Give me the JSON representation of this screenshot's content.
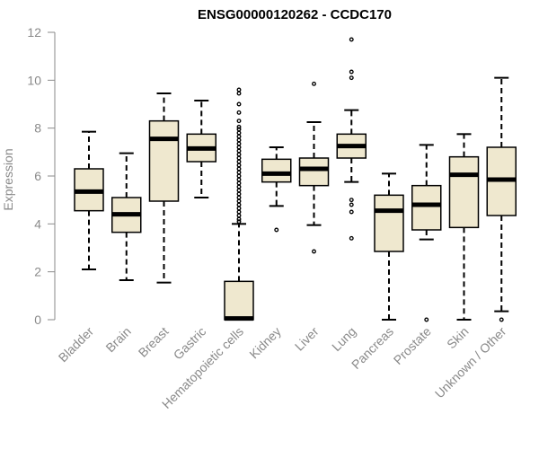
{
  "chart_data": {
    "type": "boxplot",
    "title": "ENSG00000120262 - CCDC170",
    "xlabel": "",
    "ylabel": "Expression",
    "ylim": [
      0,
      12
    ],
    "yticks": [
      0,
      2,
      4,
      6,
      8,
      10,
      12
    ],
    "grid": false,
    "box_fill": "#efe8cf",
    "median_color": "#000000",
    "categories": [
      "Bladder",
      "Brain",
      "Breast",
      "Gastric",
      "Hematopoietic cells",
      "Kidney",
      "Liver",
      "Lung",
      "Pancreas",
      "Prostate",
      "Skin",
      "Unknown / Other"
    ],
    "boxes": [
      {
        "whisker_low": 2.1,
        "q1": 4.55,
        "median": 5.35,
        "q3": 6.3,
        "whisker_high": 7.85,
        "outliers": []
      },
      {
        "whisker_low": 1.65,
        "q1": 3.65,
        "median": 4.4,
        "q3": 5.1,
        "whisker_high": 6.95,
        "outliers": []
      },
      {
        "whisker_low": 1.55,
        "q1": 4.95,
        "median": 7.55,
        "q3": 8.3,
        "whisker_high": 9.45,
        "outliers": []
      },
      {
        "whisker_low": 5.1,
        "q1": 6.6,
        "median": 7.15,
        "q3": 7.75,
        "whisker_high": 9.15,
        "outliers": []
      },
      {
        "whisker_low": 0.0,
        "q1": 0.0,
        "median": 0.05,
        "q3": 1.6,
        "whisker_high": 4.0,
        "outliers": [
          9.6,
          9.45,
          9.0,
          8.65,
          8.3,
          8.05,
          7.95,
          7.8,
          7.65,
          7.5,
          7.35,
          7.2,
          7.05,
          6.9,
          6.75,
          6.6,
          6.45,
          6.3,
          6.15,
          6.0,
          5.85,
          5.7,
          5.55,
          5.4,
          5.25,
          5.1,
          4.95,
          4.8,
          4.65,
          4.5,
          4.35,
          4.2,
          4.1
        ]
      },
      {
        "whisker_low": 4.75,
        "q1": 5.75,
        "median": 6.1,
        "q3": 6.7,
        "whisker_high": 7.2,
        "outliers": [
          3.75
        ]
      },
      {
        "whisker_low": 3.95,
        "q1": 5.6,
        "median": 6.3,
        "q3": 6.75,
        "whisker_high": 8.25,
        "outliers": [
          9.85,
          2.85
        ]
      },
      {
        "whisker_low": 5.75,
        "q1": 6.75,
        "median": 7.25,
        "q3": 7.75,
        "whisker_high": 8.75,
        "outliers": [
          11.7,
          10.35,
          10.1,
          5.0,
          4.8,
          4.5,
          3.4
        ]
      },
      {
        "whisker_low": 0.0,
        "q1": 2.85,
        "median": 4.55,
        "q3": 5.2,
        "whisker_high": 6.1,
        "outliers": []
      },
      {
        "whisker_low": 3.35,
        "q1": 3.75,
        "median": 4.8,
        "q3": 5.6,
        "whisker_high": 7.3,
        "outliers": [
          0.0
        ]
      },
      {
        "whisker_low": 0.0,
        "q1": 3.85,
        "median": 6.05,
        "q3": 6.8,
        "whisker_high": 7.75,
        "outliers": []
      },
      {
        "whisker_low": 0.35,
        "q1": 4.35,
        "median": 5.85,
        "q3": 7.2,
        "whisker_high": 10.1,
        "outliers": [
          0.0
        ]
      }
    ]
  }
}
